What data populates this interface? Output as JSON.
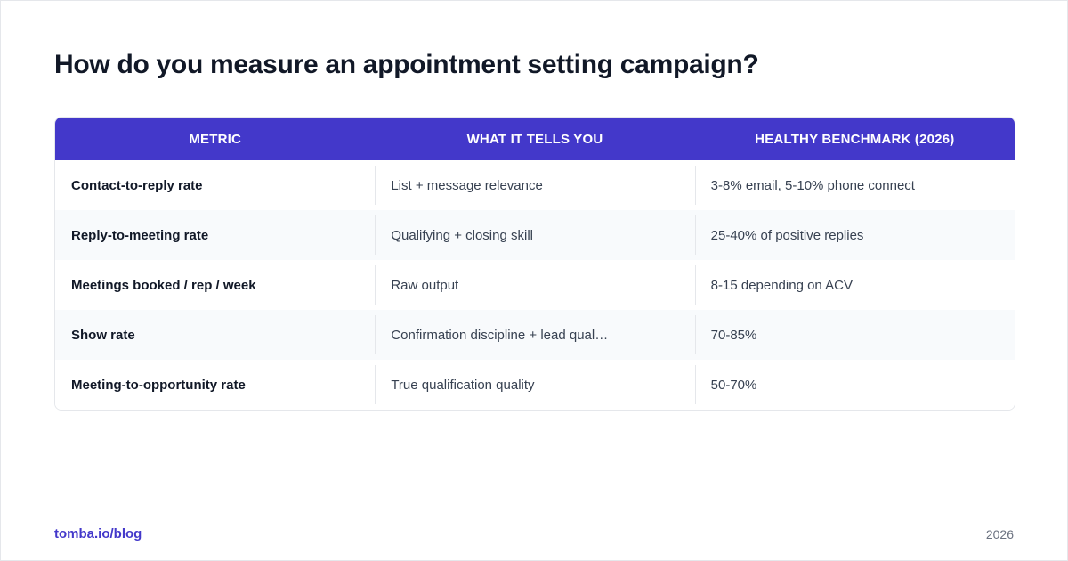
{
  "title": "How do you measure an appointment setting campaign?",
  "table": {
    "headers": [
      "METRIC",
      "WHAT IT TELLS YOU",
      "HEALTHY BENCHMARK (2026)"
    ],
    "rows": [
      {
        "metric": "Contact-to-reply rate",
        "tells": "List + message relevance",
        "benchmark": "3-8% email, 5-10% phone connect"
      },
      {
        "metric": "Reply-to-meeting rate",
        "tells": "Qualifying + closing skill",
        "benchmark": "25-40% of positive replies"
      },
      {
        "metric": "Meetings booked / rep / week",
        "tells": "Raw output",
        "benchmark": "8-15 depending on ACV"
      },
      {
        "metric": "Show rate",
        "tells": "Confirmation discipline + lead qual…",
        "benchmark": "70-85%"
      },
      {
        "metric": "Meeting-to-opportunity rate",
        "tells": "True qualification quality",
        "benchmark": "50-70%"
      }
    ]
  },
  "footer": {
    "source": "tomba.io/blog",
    "year": "2026"
  },
  "colors": {
    "header_bg": "#4338ca",
    "accent": "#4338ca",
    "title": "#111827",
    "alt_row": "#f8fafc"
  }
}
